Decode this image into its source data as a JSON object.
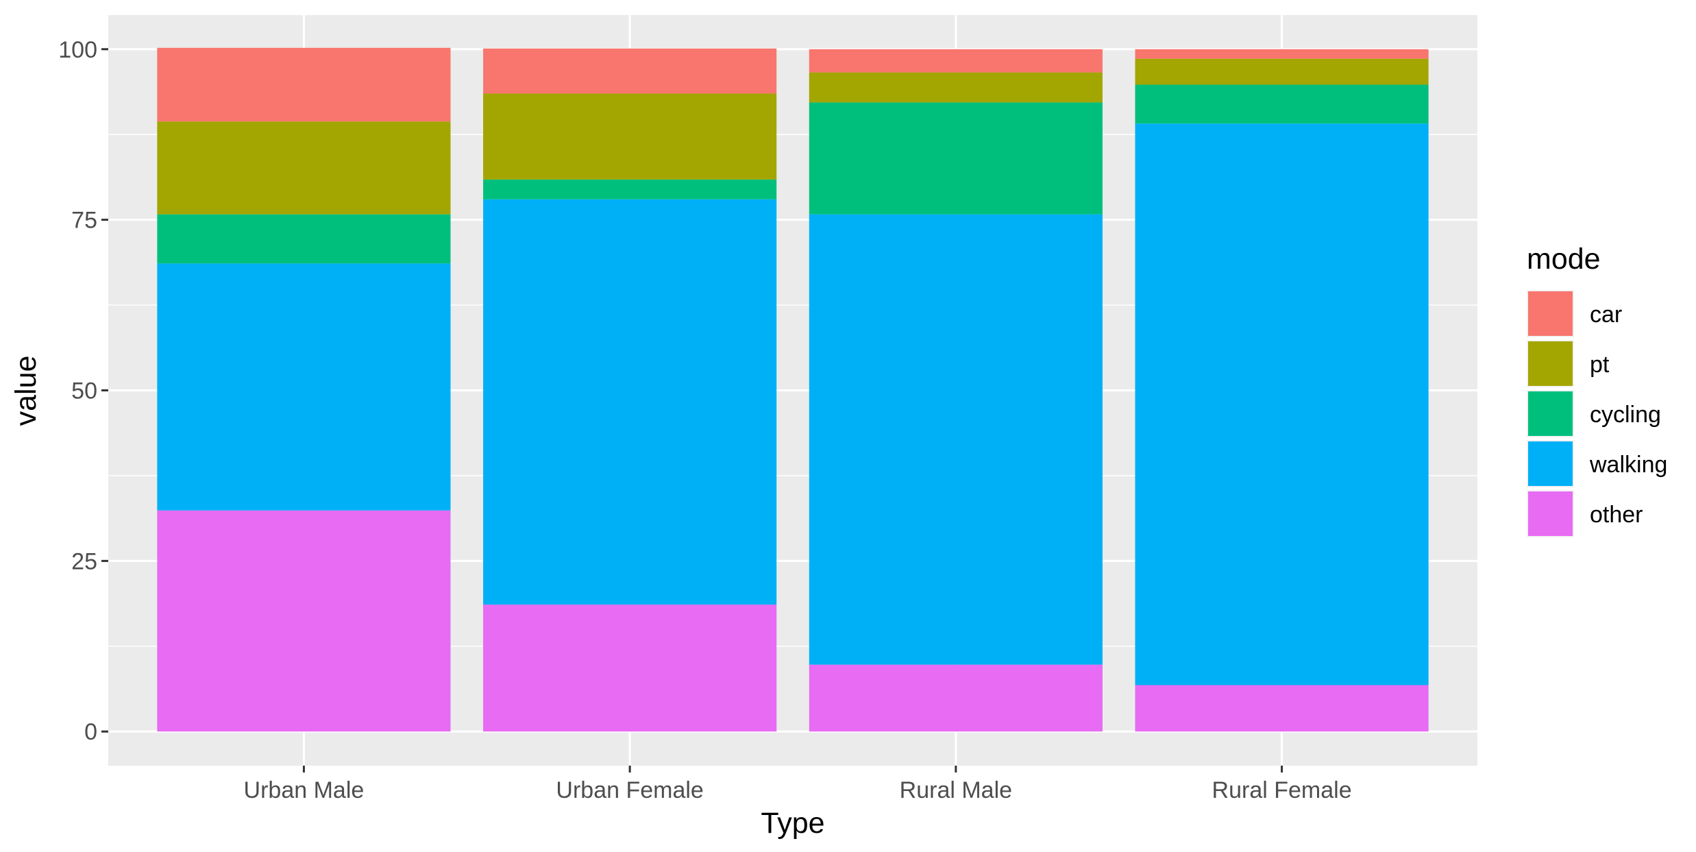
{
  "chart_data": {
    "type": "bar",
    "stacked": true,
    "categories": [
      "Urban Male",
      "Urban Female",
      "Rural Male",
      "Rural Female"
    ],
    "series": [
      {
        "name": "other",
        "color": "#E76BF3",
        "values": [
          32.4,
          18.6,
          9.8,
          6.8
        ]
      },
      {
        "name": "walking",
        "color": "#00B0F6",
        "values": [
          36.2,
          59.4,
          66.0,
          82.3
        ]
      },
      {
        "name": "cycling",
        "color": "#00BF7D",
        "values": [
          7.2,
          2.9,
          16.4,
          5.7
        ]
      },
      {
        "name": "pt",
        "color": "#A3A500",
        "values": [
          13.6,
          12.6,
          4.4,
          3.8
        ]
      },
      {
        "name": "car",
        "color": "#F8766D",
        "values": [
          10.8,
          6.6,
          3.4,
          1.4
        ]
      }
    ],
    "legend_order": [
      "car",
      "pt",
      "cycling",
      "walking",
      "other"
    ],
    "xlabel": "Type",
    "ylabel": "value",
    "legend_title": "mode",
    "ylim": [
      -5,
      105
    ],
    "yticks": [
      0,
      25,
      50,
      75,
      100
    ],
    "grid": true,
    "legend_position": "right",
    "panel_background": "#EBEBEB",
    "grid_color": "#FFFFFF"
  }
}
